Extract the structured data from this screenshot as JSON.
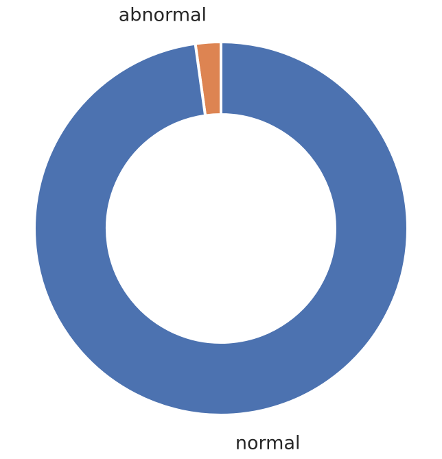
{
  "chart_data": {
    "type": "pie",
    "style": "donut",
    "categories": [
      "abnormal",
      "normal"
    ],
    "values": [
      2.2,
      97.8
    ],
    "colors": [
      "#dd8452",
      "#4c72b0"
    ],
    "edge_color": "#ffffff",
    "legend": "none",
    "start": "top",
    "direction": "counterclockwise"
  }
}
